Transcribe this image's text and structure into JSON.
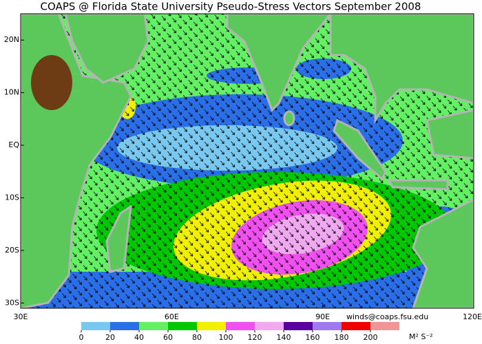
{
  "title": "COAPS @ Florida State University Pseudo-Stress Vectors September 2008",
  "map": {
    "xlim": [
      30,
      120
    ],
    "ylim": [
      -31,
      25
    ],
    "xticks": [
      {
        "value": 30,
        "label": "30E"
      },
      {
        "value": 60,
        "label": "60E"
      },
      {
        "value": 90,
        "label": "90E"
      },
      {
        "value": 120,
        "label": "120E"
      }
    ],
    "yticks": [
      {
        "value": 20,
        "label": "20N"
      },
      {
        "value": 10,
        "label": "10N"
      },
      {
        "value": 0,
        "label": "EQ"
      },
      {
        "value": -10,
        "label": "10S"
      },
      {
        "value": -20,
        "label": "20S"
      },
      {
        "value": -30,
        "label": "30S"
      }
    ]
  },
  "credit": "winds@coaps.fsu.edu",
  "colorbar": {
    "ticks": [
      0,
      20,
      40,
      60,
      80,
      100,
      120,
      140,
      160,
      180,
      200
    ],
    "colors": [
      "#78c8f0",
      "#2a6ee8",
      "#64f064",
      "#00c800",
      "#f0f000",
      "#f050f0",
      "#f0a8f0",
      "#5a00a0",
      "#a078f0",
      "#f00000",
      "#f09696"
    ],
    "units": "M² S⁻²"
  }
}
